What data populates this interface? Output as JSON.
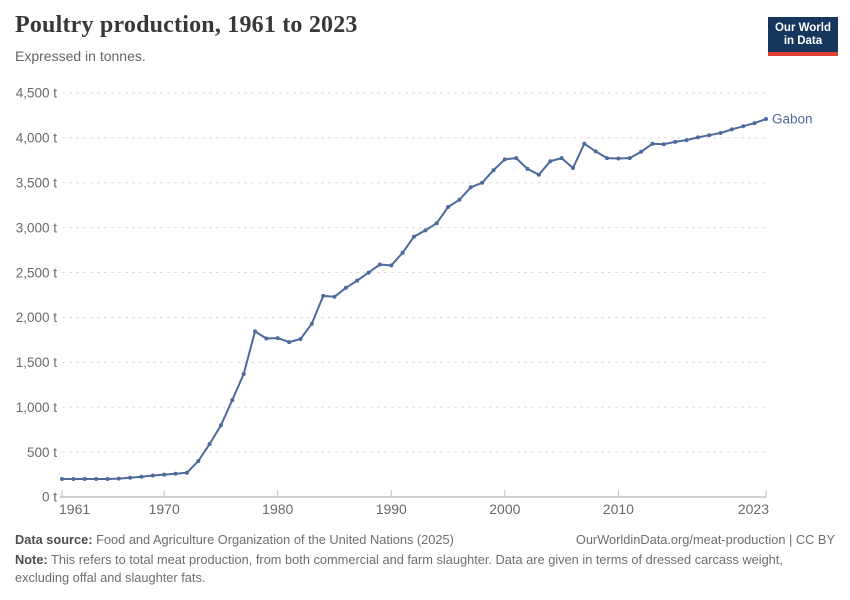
{
  "header": {
    "title": "Poultry production, 1961 to 2023",
    "subtitle": "Expressed in tonnes.",
    "logo": {
      "line1": "Our World",
      "line2": "in Data"
    }
  },
  "chart_data": {
    "type": "line",
    "title": "Poultry production, 1961 to 2023",
    "unit": "tonnes",
    "xlabel": "",
    "ylabel": "",
    "xlim": [
      1961,
      2023
    ],
    "ylim": [
      0,
      4500
    ],
    "grid": "horizontal dashed gridlines",
    "legend_position": "label at end of line",
    "x_ticks": [
      {
        "value": 1961,
        "label": "1961"
      },
      {
        "value": 1970,
        "label": "1970"
      },
      {
        "value": 1980,
        "label": "1980"
      },
      {
        "value": 1990,
        "label": "1990"
      },
      {
        "value": 2000,
        "label": "2000"
      },
      {
        "value": 2010,
        "label": "2010"
      },
      {
        "value": 2023,
        "label": "2023"
      }
    ],
    "y_ticks": [
      {
        "value": 0,
        "label": "0 t"
      },
      {
        "value": 500,
        "label": "500 t"
      },
      {
        "value": 1000,
        "label": "1,000 t"
      },
      {
        "value": 1500,
        "label": "1,500 t"
      },
      {
        "value": 2000,
        "label": "2,000 t"
      },
      {
        "value": 2500,
        "label": "2,500 t"
      },
      {
        "value": 3000,
        "label": "3,000 t"
      },
      {
        "value": 3500,
        "label": "3,500 t"
      },
      {
        "value": 4000,
        "label": "4,000 t"
      },
      {
        "value": 4500,
        "label": "4,500 t"
      }
    ],
    "series": [
      {
        "name": "Gabon",
        "color": "#4C6A9C",
        "years": [
          1961,
          1962,
          1963,
          1964,
          1965,
          1966,
          1967,
          1968,
          1969,
          1970,
          1971,
          1972,
          1973,
          1974,
          1975,
          1976,
          1977,
          1978,
          1979,
          1980,
          1981,
          1982,
          1983,
          1984,
          1985,
          1986,
          1987,
          1988,
          1989,
          1990,
          1991,
          1992,
          1993,
          1994,
          1995,
          1996,
          1997,
          1998,
          1999,
          2000,
          2001,
          2002,
          2003,
          2004,
          2005,
          2006,
          2007,
          2008,
          2009,
          2010,
          2011,
          2012,
          2013,
          2014,
          2015,
          2016,
          2017,
          2018,
          2019,
          2020,
          2021,
          2022,
          2023
        ],
        "values": [
          200,
          200,
          200,
          200,
          200,
          205,
          215,
          225,
          240,
          250,
          260,
          270,
          400,
          590,
          800,
          1080,
          1370,
          1845,
          1765,
          1770,
          1725,
          1760,
          1930,
          2240,
          2230,
          2330,
          2410,
          2500,
          2590,
          2580,
          2720,
          2900,
          2970,
          3050,
          3230,
          3310,
          3450,
          3500,
          3640,
          3760,
          3775,
          3655,
          3590,
          3740,
          3775,
          3665,
          3935,
          3850,
          3775,
          3770,
          3775,
          3845,
          3935,
          3930,
          3955,
          3975,
          4005,
          4030,
          4055,
          4095,
          4130,
          4165,
          4210
        ]
      }
    ]
  },
  "footer": {
    "data_source_label": "Data source:",
    "data_source_text": "Food and Agriculture Organization of the United Nations (2025)",
    "link": "OurWorldinData.org/meat-production | CC BY",
    "note_label": "Note:",
    "note_text": "This refers to total meat production, from both commercial and farm slaughter. Data are given in terms of dressed carcass weight, excluding offal and slaughter fats."
  },
  "colors": {
    "line": "#4C6A9C",
    "gridline": "#dddddd",
    "axis": "#a3a3a3",
    "tick_mark": "#c2c2c2",
    "tick_text": "#696969",
    "logo_bg": "#15365D",
    "logo_stripe": "#E04030"
  }
}
